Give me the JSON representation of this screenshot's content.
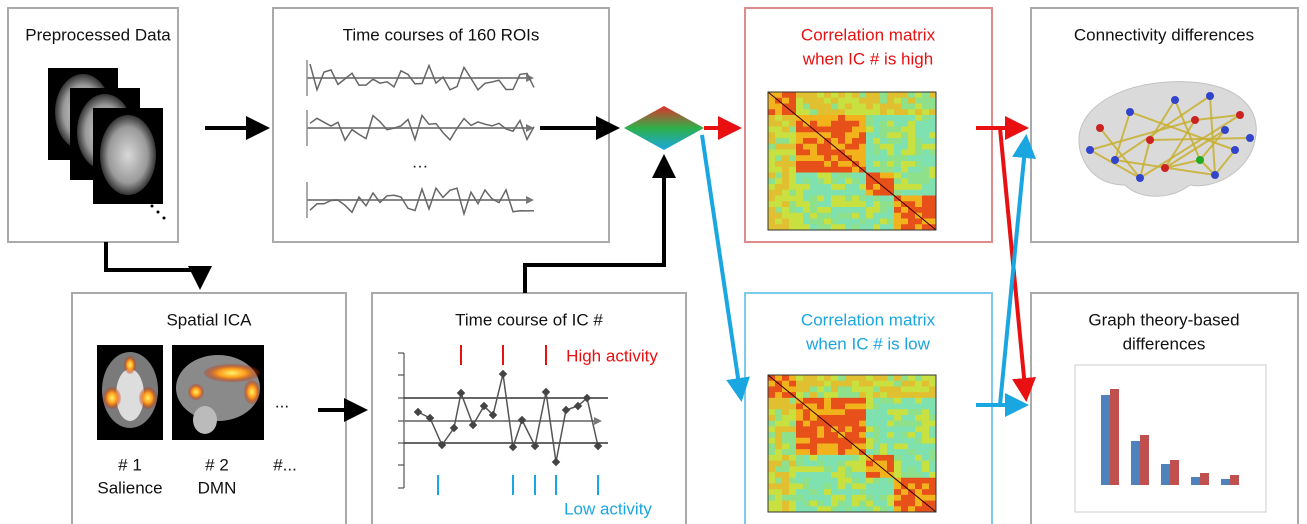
{
  "panels": {
    "preprocessed": {
      "title": "Preprocessed Data"
    },
    "roi_timecourses": {
      "title": "Time courses of 160 ROIs",
      "ellipsis": "…"
    },
    "corr_high": {
      "title_lines": [
        "Correlation matrix",
        "when IC # is high"
      ]
    },
    "connectivity": {
      "title": "Connectivity differences"
    },
    "spatial_ica": {
      "title": "Spatial ICA",
      "ellipsis": "...",
      "components": [
        {
          "number": "# 1",
          "name": "Salience"
        },
        {
          "number": "# 2",
          "name": "DMN"
        }
      ],
      "more": "#..."
    },
    "ic_timecourse": {
      "title": "Time course of IC #",
      "high_label": "High activity",
      "low_label": "Low activity"
    },
    "corr_low": {
      "title_lines": [
        "Correlation matrix",
        "when IC # is low"
      ]
    },
    "graph": {
      "title_lines": [
        "Graph theory-based",
        "differences"
      ]
    }
  }
}
